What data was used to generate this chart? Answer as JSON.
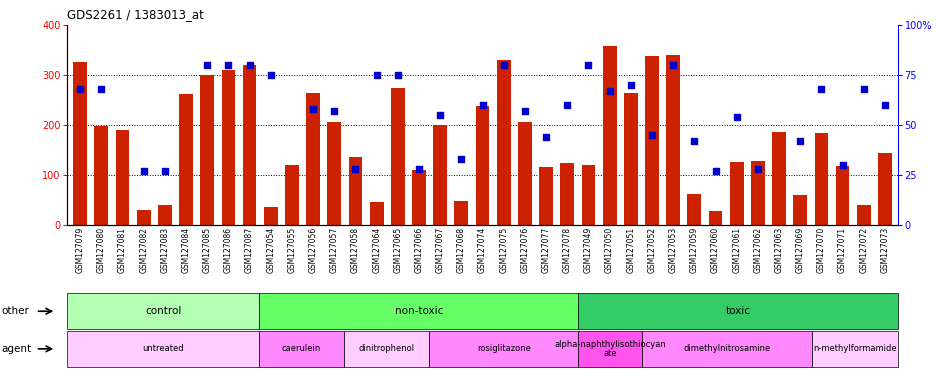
{
  "title": "GDS2261 / 1383013_at",
  "samples": [
    "GSM127079",
    "GSM127080",
    "GSM127081",
    "GSM127082",
    "GSM127083",
    "GSM127084",
    "GSM127085",
    "GSM127086",
    "GSM127087",
    "GSM127054",
    "GSM127055",
    "GSM127056",
    "GSM127057",
    "GSM127058",
    "GSM127064",
    "GSM127065",
    "GSM127066",
    "GSM127067",
    "GSM127068",
    "GSM127074",
    "GSM127075",
    "GSM127076",
    "GSM127077",
    "GSM127078",
    "GSM127049",
    "GSM127050",
    "GSM127051",
    "GSM127052",
    "GSM127053",
    "GSM127059",
    "GSM127060",
    "GSM127061",
    "GSM127062",
    "GSM127063",
    "GSM127069",
    "GSM127070",
    "GSM127071",
    "GSM127072",
    "GSM127073"
  ],
  "counts": [
    325,
    197,
    190,
    30,
    40,
    262,
    300,
    310,
    320,
    35,
    120,
    263,
    205,
    135,
    45,
    273,
    110,
    200,
    47,
    238,
    330,
    205,
    115,
    123,
    120,
    358,
    263,
    337,
    340,
    62,
    28,
    125,
    127,
    185,
    60,
    183,
    118,
    40,
    143
  ],
  "percentile": [
    68,
    68,
    null,
    27,
    27,
    null,
    80,
    80,
    80,
    75,
    null,
    58,
    57,
    28,
    75,
    75,
    28,
    55,
    33,
    60,
    80,
    57,
    44,
    60,
    80,
    67,
    70,
    45,
    80,
    42,
    27,
    54,
    28,
    null,
    42,
    68,
    30,
    68,
    60
  ],
  "bar_color": "#cc2200",
  "dot_color": "#0000cc",
  "ylim_left": [
    0,
    400
  ],
  "ylim_right": [
    0,
    100
  ],
  "yticks_left": [
    0,
    100,
    200,
    300,
    400
  ],
  "yticks_right": [
    0,
    25,
    50,
    75,
    100
  ],
  "group_other": [
    {
      "label": "control",
      "start": 0,
      "end": 9,
      "color": "#b3ffb3"
    },
    {
      "label": "non-toxic",
      "start": 9,
      "end": 24,
      "color": "#66ff66"
    },
    {
      "label": "toxic",
      "start": 24,
      "end": 39,
      "color": "#33cc66"
    }
  ],
  "group_agent": [
    {
      "label": "untreated",
      "start": 0,
      "end": 9,
      "color": "#ffccff"
    },
    {
      "label": "caerulein",
      "start": 9,
      "end": 13,
      "color": "#ff88ff"
    },
    {
      "label": "dinitrophenol",
      "start": 13,
      "end": 17,
      "color": "#ffccff"
    },
    {
      "label": "rosiglitazone",
      "start": 17,
      "end": 24,
      "color": "#ff88ff"
    },
    {
      "label": "alpha-naphthylisothiocyan\nate",
      "start": 24,
      "end": 27,
      "color": "#ff55ee"
    },
    {
      "label": "dimethylnitrosamine",
      "start": 27,
      "end": 35,
      "color": "#ff88ff"
    },
    {
      "label": "n-methylformamide",
      "start": 35,
      "end": 39,
      "color": "#ffccff"
    }
  ],
  "xtick_bg": "#d8d8d8",
  "row_other_label": "other",
  "row_agent_label": "agent"
}
